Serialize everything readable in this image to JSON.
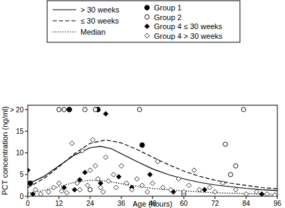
{
  "chart_data": {
    "type": "scatter",
    "x_label": "Age (hours)",
    "y_label": "PCT concentration (ng/ml)",
    "xlim": [
      0,
      96
    ],
    "ylim": [
      0,
      21
    ],
    "xticks": [
      0,
      12,
      24,
      36,
      48,
      60,
      72,
      84,
      96
    ],
    "yticks": [
      0,
      5,
      10,
      15,
      {
        "value": 20,
        "label": "> 20"
      }
    ],
    "legend": "top",
    "series": [
      {
        "name": "> 30 weeks",
        "type": "line",
        "line_style": "solid",
        "color": "#000000",
        "x": [
          0,
          6,
          12,
          18,
          24,
          28,
          32,
          36,
          42,
          48,
          54,
          60,
          66,
          72,
          78,
          84,
          90,
          96
        ],
        "values": [
          2.8,
          4.5,
          7,
          9.5,
          11.2,
          11.5,
          11,
          9.8,
          8,
          6.3,
          5,
          4,
          3.2,
          2.6,
          2.2,
          1.8,
          1.5,
          1.3
        ]
      },
      {
        "name": "≤ 30 weeks",
        "type": "line",
        "line_style": "dashed",
        "color": "#000000",
        "x": [
          0,
          6,
          12,
          18,
          24,
          30,
          36,
          42,
          48,
          54,
          60,
          66,
          72,
          78,
          84,
          90,
          96
        ],
        "values": [
          2,
          4,
          6.8,
          9.8,
          12.2,
          13,
          12.3,
          10.8,
          9,
          7.3,
          5.8,
          4.6,
          3.7,
          3,
          2.5,
          2,
          1.7
        ]
      },
      {
        "name": "Median",
        "type": "line",
        "line_style": "dotted",
        "color": "#000000",
        "x": [
          0,
          6,
          12,
          18,
          24,
          30,
          36,
          42,
          48,
          54,
          60,
          66,
          72,
          78,
          84,
          90,
          96
        ],
        "values": [
          0.7,
          1.3,
          2.2,
          3.2,
          3.7,
          3.5,
          2.9,
          2.3,
          1.8,
          1.5,
          1.2,
          1,
          0.8,
          0.7,
          0.6,
          0.5,
          0.4
        ]
      },
      {
        "name": "Group 1",
        "type": "scatter",
        "marker": "circle",
        "color": "#000000",
        "x": [
          16,
          27,
          44,
          1
        ],
        "values": [
          20,
          20,
          11.8,
          3
        ]
      },
      {
        "name": "Group 2",
        "type": "scatter",
        "marker": "circle-open",
        "color": "#000000",
        "x": [
          12,
          14,
          22,
          26,
          43,
          83,
          76,
          78,
          80,
          24,
          60
        ],
        "values": [
          20,
          20,
          20,
          20,
          20,
          20,
          12,
          5,
          7,
          1.5,
          0.5
        ]
      },
      {
        "name": "Group 4 ≤ 30 weeks",
        "type": "scatter",
        "marker": "diamond",
        "color": "#000000",
        "x": [
          0,
          2,
          14,
          18,
          20,
          22,
          28,
          30,
          35,
          40,
          47,
          56,
          68,
          90
        ],
        "values": [
          6,
          0.5,
          2,
          1.5,
          3.8,
          5.5,
          3,
          19,
          4.5,
          2,
          5,
          1,
          1.5,
          0.5
        ]
      },
      {
        "name": "Group 4 > 30 weeks",
        "type": "scatter",
        "marker": "diamond-open",
        "color": "#000000",
        "x": [
          3,
          5,
          8,
          10,
          12,
          13,
          15,
          17,
          19,
          20,
          21,
          23,
          24,
          25,
          26,
          27,
          28,
          29,
          30,
          31,
          33,
          34,
          36,
          38,
          40,
          42,
          44,
          46,
          48,
          50,
          52,
          55,
          58,
          60,
          62,
          64,
          66,
          70,
          72,
          75,
          80,
          84,
          88,
          92,
          95
        ],
        "values": [
          1.5,
          0.5,
          1,
          2,
          3,
          1.2,
          0.8,
          12.2,
          3,
          1.5,
          10.5,
          2.5,
          6,
          13,
          7,
          4,
          2,
          1,
          9,
          3.5,
          5,
          2,
          7,
          3,
          1.5,
          4,
          2.5,
          1,
          3,
          8,
          2,
          1.5,
          4,
          1,
          2.5,
          6,
          1.5,
          2,
          1,
          3,
          1.5,
          0.5,
          1,
          0.5,
          0.3
        ]
      }
    ]
  }
}
